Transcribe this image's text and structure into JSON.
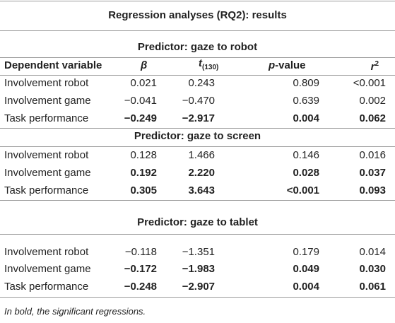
{
  "title": "Regression analyses (RQ2): results",
  "columns": [
    {
      "text": "Dependent variable"
    },
    {
      "text": "β"
    },
    {
      "text": "t",
      "sub": "(130)"
    },
    {
      "text": "p",
      "suffix": "-value"
    },
    {
      "text": "r",
      "sup": "2"
    }
  ],
  "sections": [
    {
      "title": "Predictor: gaze to robot",
      "rows": [
        {
          "cells": [
            "Involvement robot",
            "0.021",
            "0.243",
            "0.809",
            "<0.001"
          ],
          "bold": false
        },
        {
          "cells": [
            "Involvement game",
            "−0.041",
            "−0.470",
            "0.639",
            "0.002"
          ],
          "bold": false
        },
        {
          "cells": [
            "Task performance",
            "−0.249",
            "−2.917",
            "0.004",
            "0.062"
          ],
          "bold": true
        }
      ]
    },
    {
      "title": "Predictor: gaze to screen",
      "rows": [
        {
          "cells": [
            "Involvement robot",
            "0.128",
            "1.466",
            "0.146",
            "0.016"
          ],
          "bold": false
        },
        {
          "cells": [
            "Involvement game",
            "0.192",
            "2.220",
            "0.028",
            "0.037"
          ],
          "bold": true
        },
        {
          "cells": [
            "Task performance",
            "0.305",
            "3.643",
            "<0.001",
            "0.093"
          ],
          "bold": true
        }
      ]
    },
    {
      "title": "Predictor: gaze to tablet",
      "rows": [
        {
          "cells": [
            "Involvement robot",
            "−0.118",
            "−1.351",
            "0.179",
            "0.014"
          ],
          "bold": false
        },
        {
          "cells": [
            "Involvement game",
            "−0.172",
            "−1.983",
            "0.049",
            "0.030"
          ],
          "bold": true
        },
        {
          "cells": [
            "Task performance",
            "−0.248",
            "−2.907",
            "0.004",
            "0.061"
          ],
          "bold": true
        }
      ]
    }
  ],
  "note": "In bold, the significant regressions."
}
